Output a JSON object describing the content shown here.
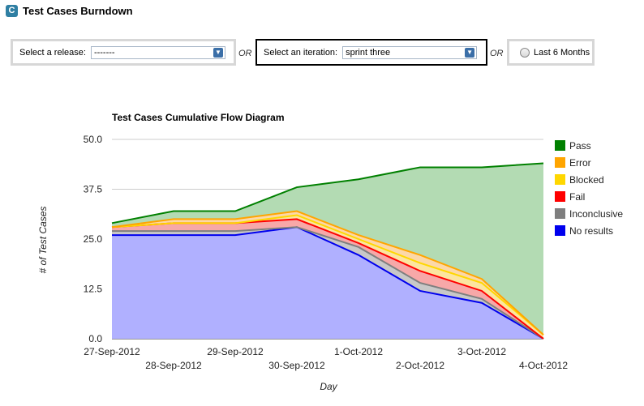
{
  "header": {
    "icon_letter": "C",
    "title": "Test Cases Burndown"
  },
  "filters": {
    "release": {
      "label": "Select a release:",
      "value": "-------"
    },
    "or_1": "OR",
    "iteration": {
      "label": "Select an iteration:",
      "value": "sprint three"
    },
    "or_2": "OR",
    "last_months": {
      "label": "Last 6 Months",
      "checked": false
    }
  },
  "chart_data": {
    "type": "area",
    "stacked": true,
    "title": "Test Cases Cumulative Flow Diagram",
    "xlabel": "Day",
    "ylabel": "# of Test Cases",
    "ylim": [
      0,
      50
    ],
    "yticks": [
      "0.0",
      "12.5",
      "25.0",
      "37.5",
      "50.0"
    ],
    "grid": true,
    "legend_position": "right",
    "categories": [
      "27-Sep-2012",
      "28-Sep-2012",
      "29-Sep-2012",
      "30-Sep-2012",
      "1-Oct-2012",
      "2-Oct-2012",
      "3-Oct-2012",
      "4-Oct-2012"
    ],
    "series": [
      {
        "name": "No results",
        "color": "#0000ee",
        "fill": "#b0b0ff",
        "values": [
          26,
          26,
          26,
          28,
          21,
          12,
          9,
          0
        ]
      },
      {
        "name": "Inconclusive",
        "color": "#7f7f7f",
        "fill": "#c8c8c8",
        "values": [
          1,
          1,
          1,
          0,
          2,
          2,
          1,
          0
        ]
      },
      {
        "name": "Fail",
        "color": "#ff0000",
        "fill": "#f7a8a8",
        "values": [
          1,
          2,
          2,
          2,
          1,
          3,
          2,
          0
        ]
      },
      {
        "name": "Blocked",
        "color": "#ffd700",
        "fill": "#fce5a0",
        "values": [
          0,
          0,
          0,
          1,
          1,
          2,
          2,
          1
        ]
      },
      {
        "name": "Error",
        "color": "#ffa500",
        "fill": "#fcd8a8",
        "values": [
          0,
          1,
          1,
          1,
          1,
          2,
          1,
          0
        ]
      },
      {
        "name": "Pass",
        "color": "#008000",
        "fill": "#b3dbb3",
        "values": [
          1,
          2,
          2,
          6,
          14,
          22,
          28,
          43
        ]
      }
    ],
    "legend_order": [
      "Pass",
      "Error",
      "Blocked",
      "Fail",
      "Inconclusive",
      "No results"
    ]
  }
}
